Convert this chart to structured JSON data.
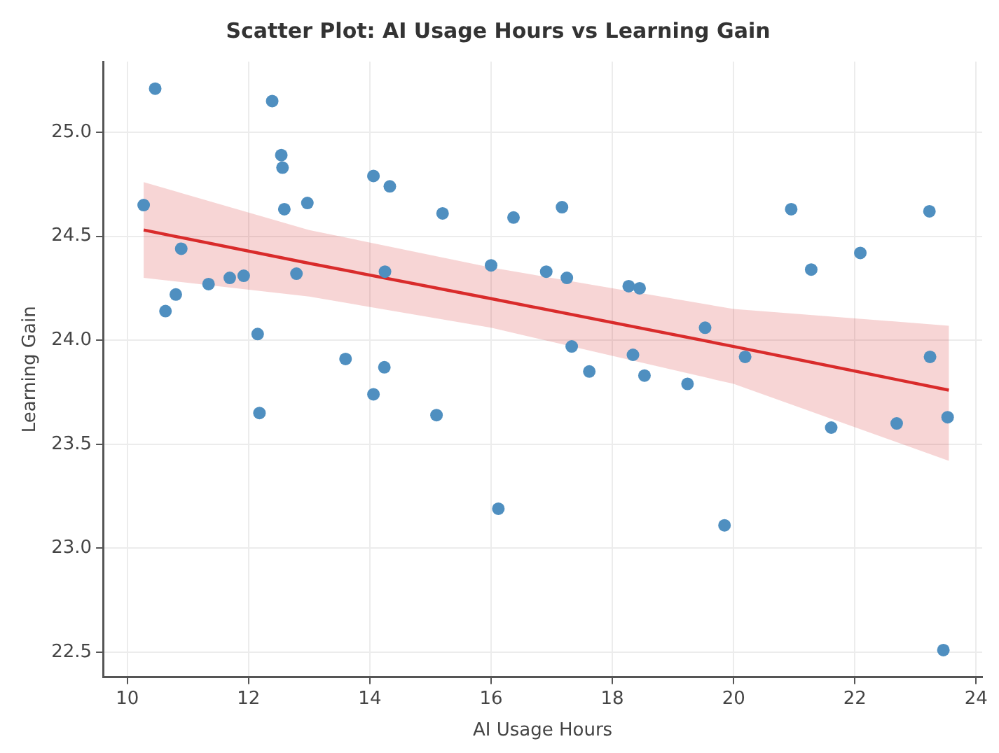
{
  "chart_data": {
    "type": "scatter",
    "title": "Scatter Plot: AI Usage Hours vs Learning Gain",
    "xlabel": "AI Usage Hours",
    "ylabel": "Learning Gain",
    "xlim": [
      9.6,
      24.1
    ],
    "ylim": [
      22.38,
      25.34
    ],
    "xticks": [
      10,
      12,
      14,
      16,
      18,
      20,
      22,
      24
    ],
    "yticks": [
      {
        "value": 22.5,
        "label": "22.5"
      },
      {
        "value": 23,
        "label": "23.0"
      },
      {
        "value": 23.5,
        "label": "23.5"
      },
      {
        "value": 24,
        "label": "24.0"
      },
      {
        "value": 24.5,
        "label": "24.5"
      },
      {
        "value": 25,
        "label": "25.0"
      }
    ],
    "grid": true,
    "series": [
      {
        "type": "scatter",
        "marker": "circle",
        "color": "#4f8fc0",
        "x": [
          10.27,
          10.46,
          10.63,
          10.8,
          10.89,
          11.34,
          11.69,
          11.92,
          12.15,
          12.39,
          12.54,
          12.56,
          12.59,
          12.79,
          12.97,
          13.6,
          14.06,
          14.33,
          14.25,
          14.24,
          15.2,
          16.0,
          16.37,
          12.18,
          14.06,
          15.1,
          16.12,
          17.17,
          16.91,
          17.25,
          18.27,
          18.45,
          17.33,
          17.62,
          18.34,
          18.53,
          19.24,
          19.53,
          20.19,
          20.95,
          21.28,
          22.09,
          23.23,
          23.24,
          21.61,
          22.69,
          23.53,
          19.85,
          23.46
        ],
        "values": [
          24.65,
          25.21,
          24.14,
          24.22,
          24.44,
          24.27,
          24.3,
          24.31,
          24.03,
          25.15,
          24.89,
          24.83,
          24.63,
          24.32,
          24.66,
          23.91,
          24.79,
          24.74,
          24.33,
          23.87,
          24.61,
          24.36,
          24.59,
          23.65,
          23.74,
          23.64,
          23.19,
          24.64,
          24.33,
          24.3,
          24.26,
          24.25,
          23.97,
          23.85,
          23.93,
          23.83,
          23.79,
          24.06,
          23.92,
          24.63,
          24.34,
          24.42,
          24.62,
          23.92,
          23.58,
          23.6,
          23.63,
          23.11,
          22.51
        ]
      },
      {
        "type": "line",
        "marker": "none",
        "color": "#d92b2b",
        "x": [
          10.27,
          13,
          16,
          20,
          23.55
        ],
        "values": [
          24.53,
          24.37,
          24.2,
          23.97,
          23.76
        ],
        "lower": [
          24.3,
          24.21,
          24.06,
          23.79,
          23.42
        ],
        "upper": [
          24.76,
          24.53,
          24.35,
          24.15,
          24.07
        ]
      }
    ]
  }
}
